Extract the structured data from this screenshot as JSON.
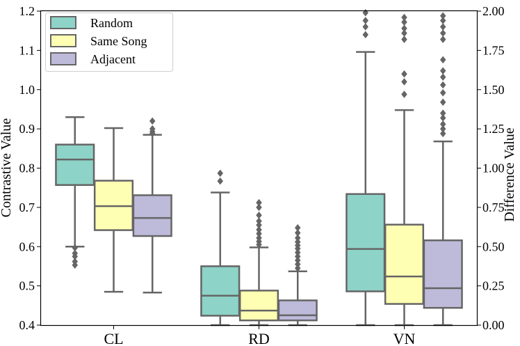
{
  "chart_data": {
    "type": "boxplot",
    "categories": [
      "CL",
      "RD",
      "VN"
    ],
    "series": [
      {
        "name": "Random",
        "color": "#8dd3c7"
      },
      {
        "name": "Same Song",
        "color": "#ffffb3"
      },
      {
        "name": "Adjacent",
        "color": "#bebada"
      }
    ],
    "left_axis": {
      "label": "Contrastive Value",
      "ylim": [
        0.4,
        1.2
      ],
      "ticks": [
        0.4,
        0.5,
        0.6,
        0.7,
        0.8,
        0.9,
        1.0,
        1.1,
        1.2
      ],
      "tick_labels": [
        "0.4",
        "0.5",
        "0.6",
        "0.7",
        "0.8",
        "0.9",
        "1.0",
        "1.1",
        "1.2"
      ]
    },
    "right_axis": {
      "label": "Difference Value",
      "ylim": [
        0.0,
        2.0
      ],
      "ticks": [
        0.0,
        0.25,
        0.5,
        0.75,
        1.0,
        1.25,
        1.5,
        1.75,
        2.0
      ],
      "tick_labels": [
        "0.00",
        "0.25",
        "0.50",
        "0.75",
        "1.00",
        "1.25",
        "1.50",
        "1.75",
        "2.00"
      ]
    },
    "boxes": [
      {
        "category": "CL",
        "series": "Random",
        "axis": "left",
        "whisker_low": 0.6,
        "q1": 0.757,
        "median": 0.822,
        "q3": 0.86,
        "whisker_high": 0.93,
        "outliers": [
          0.553,
          0.562,
          0.575,
          0.583,
          0.597
        ]
      },
      {
        "category": "CL",
        "series": "Same Song",
        "axis": "left",
        "whisker_low": 0.485,
        "q1": 0.642,
        "median": 0.703,
        "q3": 0.768,
        "whisker_high": 0.902,
        "outliers": []
      },
      {
        "category": "CL",
        "series": "Adjacent",
        "axis": "left",
        "whisker_low": 0.483,
        "q1": 0.627,
        "median": 0.673,
        "q3": 0.731,
        "whisker_high": 0.885,
        "outliers": [
          0.888,
          0.893,
          0.9,
          0.92
        ]
      },
      {
        "category": "RD",
        "series": "Random",
        "axis": "left",
        "whisker_low": 0.4,
        "q1": 0.424,
        "median": 0.475,
        "q3": 0.55,
        "whisker_high": 0.738,
        "outliers": [
          0.767,
          0.787
        ]
      },
      {
        "category": "RD",
        "series": "Same Song",
        "axis": "left",
        "whisker_low": 0.4,
        "q1": 0.412,
        "median": 0.437,
        "q3": 0.488,
        "whisker_high": 0.598,
        "outliers": [
          0.605,
          0.613,
          0.622,
          0.633,
          0.643,
          0.655,
          0.665,
          0.68,
          0.7,
          0.712
        ]
      },
      {
        "category": "RD",
        "series": "Adjacent",
        "axis": "left",
        "whisker_low": 0.4,
        "q1": 0.412,
        "median": 0.425,
        "q3": 0.463,
        "whisker_high": 0.537,
        "outliers": [
          0.545,
          0.555,
          0.565,
          0.575,
          0.585,
          0.595,
          0.603,
          0.612,
          0.622,
          0.635,
          0.648
        ]
      },
      {
        "category": "VN",
        "series": "Random",
        "axis": "right",
        "whisker_low": 0.0,
        "q1": 0.215,
        "median": 0.485,
        "q3": 0.835,
        "whisker_high": 1.74,
        "outliers": [
          1.85,
          1.9,
          1.94,
          1.99
        ]
      },
      {
        "category": "VN",
        "series": "Same Song",
        "axis": "right",
        "whisker_low": 0.0,
        "q1": 0.135,
        "median": 0.31,
        "q3": 0.64,
        "whisker_high": 1.37,
        "outliers": [
          1.47,
          1.55,
          1.6,
          1.82,
          1.86,
          1.89,
          1.93,
          1.96
        ]
      },
      {
        "category": "VN",
        "series": "Adjacent",
        "axis": "right",
        "whisker_low": 0.0,
        "q1": 0.11,
        "median": 0.235,
        "q3": 0.54,
        "whisker_high": 1.17,
        "outliers": [
          1.22,
          1.25,
          1.28,
          1.32,
          1.35,
          1.42,
          1.48,
          1.53,
          1.58,
          1.62,
          1.69,
          1.82,
          1.86,
          1.9,
          1.94,
          1.97
        ]
      }
    ],
    "xlabel": "",
    "ylabel": "Contrastive Value",
    "y2label": "Difference Value",
    "legend_position": "top-left",
    "grid": false
  }
}
